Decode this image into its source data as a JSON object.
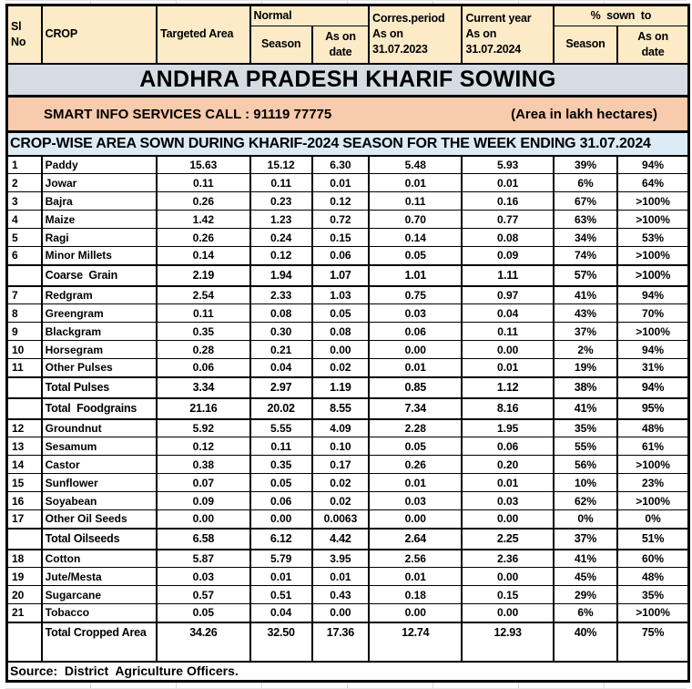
{
  "header": {
    "title": "ANDHRA PRADESH KHARIF SOWING",
    "contact": "SMART INFO SERVICES CALL : 91119 77775",
    "unit_note": "(Area in lakh hectares)",
    "caption": "CROP-WISE AREA SOWN DURING KHARIF-2024 SEASON FOR THE WEEK ENDING 31.07.2024"
  },
  "columns": {
    "sl_no": "Sl\nNo",
    "crop": "CROP",
    "targeted_area": "Targeted Area",
    "normal": "Normal",
    "normal_season": "Season",
    "normal_as_on_date": "As on\ndate",
    "corres_period": "Corres.period\nAs on\n31.07.2023",
    "current_year": "Current year\nAs on\n31.07.2024",
    "pct_sown_to": "%  sown  to",
    "pct_season": "Season",
    "pct_as_on_date": "As on\ndate"
  },
  "table": {
    "rows": [
      {
        "sl": "1",
        "crop": "Paddy",
        "values": [
          "15.63",
          "15.12",
          "6.30",
          "5.48",
          "5.93",
          "39%",
          "94%"
        ],
        "summary": false,
        "tall": false
      },
      {
        "sl": "2",
        "crop": "Jowar",
        "values": [
          "0.11",
          "0.11",
          "0.01",
          "0.01",
          "0.01",
          "6%",
          "64%"
        ],
        "summary": false,
        "tall": false
      },
      {
        "sl": "3",
        "crop": "Bajra",
        "values": [
          "0.26",
          "0.23",
          "0.12",
          "0.11",
          "0.16",
          "67%",
          ">100%"
        ],
        "summary": false,
        "tall": false
      },
      {
        "sl": "4",
        "crop": "Maize",
        "values": [
          "1.42",
          "1.23",
          "0.72",
          "0.70",
          "0.77",
          "63%",
          ">100%"
        ],
        "summary": false,
        "tall": false
      },
      {
        "sl": "5",
        "crop": "Ragi",
        "values": [
          "0.26",
          "0.24",
          "0.15",
          "0.14",
          "0.08",
          "34%",
          "53%"
        ],
        "summary": false,
        "tall": false
      },
      {
        "sl": "6",
        "crop": "Minor Millets",
        "values": [
          "0.14",
          "0.12",
          "0.06",
          "0.05",
          "0.09",
          "74%",
          ">100%"
        ],
        "summary": false,
        "tall": false
      },
      {
        "sl": "",
        "crop": "Coarse  Grain",
        "values": [
          "2.19",
          "1.94",
          "1.07",
          "1.01",
          "1.11",
          "57%",
          ">100%"
        ],
        "summary": true,
        "tall": false
      },
      {
        "sl": "7",
        "crop": "Redgram",
        "values": [
          "2.54",
          "2.33",
          "1.03",
          "0.75",
          "0.97",
          "41%",
          "94%"
        ],
        "summary": false,
        "tall": false
      },
      {
        "sl": "8",
        "crop": "Greengram",
        "values": [
          "0.11",
          "0.08",
          "0.05",
          "0.03",
          "0.04",
          "43%",
          "70%"
        ],
        "summary": false,
        "tall": false
      },
      {
        "sl": "9",
        "crop": "Blackgram",
        "values": [
          "0.35",
          "0.30",
          "0.08",
          "0.06",
          "0.11",
          "37%",
          ">100%"
        ],
        "summary": false,
        "tall": false
      },
      {
        "sl": "10",
        "crop": "Horsegram",
        "values": [
          "0.28",
          "0.21",
          "0.00",
          "0.00",
          "0.00",
          "2%",
          "94%"
        ],
        "summary": false,
        "tall": false
      },
      {
        "sl": "11",
        "crop": "Other Pulses",
        "values": [
          "0.06",
          "0.04",
          "0.02",
          "0.01",
          "0.01",
          "19%",
          "31%"
        ],
        "summary": false,
        "tall": false
      },
      {
        "sl": "",
        "crop": "Total Pulses",
        "values": [
          "3.34",
          "2.97",
          "1.19",
          "0.85",
          "1.12",
          "38%",
          "94%"
        ],
        "summary": true,
        "tall": false
      },
      {
        "sl": "",
        "crop": "Total  Foodgrains",
        "values": [
          "21.16",
          "20.02",
          "8.55",
          "7.34",
          "8.16",
          "41%",
          "95%"
        ],
        "summary": true,
        "tall": false
      },
      {
        "sl": "12",
        "crop": "Groundnut",
        "values": [
          "5.92",
          "5.55",
          "4.09",
          "2.28",
          "1.95",
          "35%",
          "48%"
        ],
        "summary": false,
        "tall": false
      },
      {
        "sl": "13",
        "crop": "Sesamum",
        "values": [
          "0.12",
          "0.11",
          "0.10",
          "0.05",
          "0.06",
          "55%",
          "61%"
        ],
        "summary": false,
        "tall": false
      },
      {
        "sl": "14",
        "crop": "Castor",
        "values": [
          "0.38",
          "0.35",
          "0.17",
          "0.26",
          "0.20",
          "56%",
          ">100%"
        ],
        "summary": false,
        "tall": false
      },
      {
        "sl": "15",
        "crop": "Sunflower",
        "values": [
          "0.07",
          "0.05",
          "0.02",
          "0.01",
          "0.01",
          "10%",
          "23%"
        ],
        "summary": false,
        "tall": false
      },
      {
        "sl": "16",
        "crop": "Soyabean",
        "values": [
          "0.09",
          "0.06",
          "0.02",
          "0.03",
          "0.03",
          "62%",
          ">100%"
        ],
        "summary": false,
        "tall": false
      },
      {
        "sl": "17",
        "crop": "Other Oil Seeds",
        "values": [
          "0.00",
          "0.00",
          "0.0063",
          "0.00",
          "0.00",
          "0%",
          "0%"
        ],
        "summary": false,
        "tall": false
      },
      {
        "sl": "",
        "crop": "Total Oilseeds",
        "values": [
          "6.58",
          "6.12",
          "4.42",
          "2.64",
          "2.25",
          "37%",
          "51%"
        ],
        "summary": true,
        "tall": false
      },
      {
        "sl": "18",
        "crop": "Cotton",
        "values": [
          "5.87",
          "5.79",
          "3.95",
          "2.56",
          "2.36",
          "41%",
          "60%"
        ],
        "summary": false,
        "tall": false
      },
      {
        "sl": "19",
        "crop": "Jute/Mesta",
        "values": [
          "0.03",
          "0.01",
          "0.01",
          "0.01",
          "0.00",
          "45%",
          "48%"
        ],
        "summary": false,
        "tall": false
      },
      {
        "sl": "20",
        "crop": "Sugarcane",
        "values": [
          "0.57",
          "0.51",
          "0.43",
          "0.18",
          "0.15",
          "29%",
          "35%"
        ],
        "summary": false,
        "tall": false
      },
      {
        "sl": "21",
        "crop": "Tobacco",
        "values": [
          "0.05",
          "0.04",
          "0.00",
          "0.00",
          "0.00",
          "6%",
          ">100%"
        ],
        "summary": false,
        "tall": false
      },
      {
        "sl": "",
        "crop": "Total Cropped Area",
        "values": [
          "34.26",
          "32.50",
          "17.36",
          "12.74",
          "12.93",
          "40%",
          "75%"
        ],
        "summary": true,
        "tall": true
      }
    ]
  },
  "footer": {
    "source": "Source:  District  Agriculture Officers."
  },
  "colors": {
    "title_bg": "#D6DCE4",
    "subtitle_bg": "#F8CBAD",
    "caption_bg": "#DDEBF7",
    "header_bg": "#FDEBC8",
    "border_color": "#000000"
  }
}
